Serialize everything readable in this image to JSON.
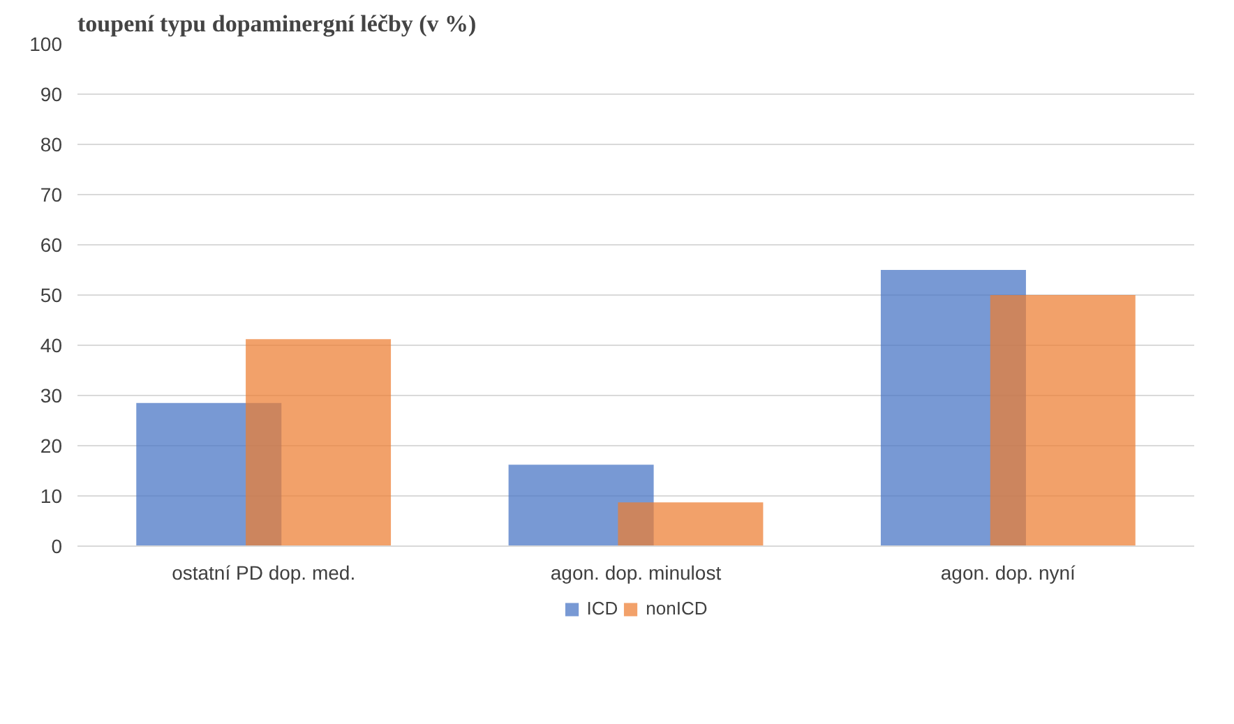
{
  "chart_data": {
    "type": "bar",
    "title": "toupení typu dopaminergní léčby (v %)",
    "categories": [
      "ostatní PD dop. med.",
      "agon. dop. minulost",
      "agon. dop. nyní"
    ],
    "series": [
      {
        "name": "ICD",
        "color": "#4472c4",
        "values": [
          28.5,
          16.2,
          55
        ]
      },
      {
        "name": "nonICD",
        "color": "#ed7d31",
        "values": [
          41.2,
          8.7,
          50
        ]
      }
    ],
    "ylim": [
      0,
      100
    ],
    "yticks": [
      0,
      10,
      20,
      30,
      40,
      50,
      60,
      70,
      80,
      90,
      100
    ],
    "grid": "y",
    "legend": "bottom"
  }
}
